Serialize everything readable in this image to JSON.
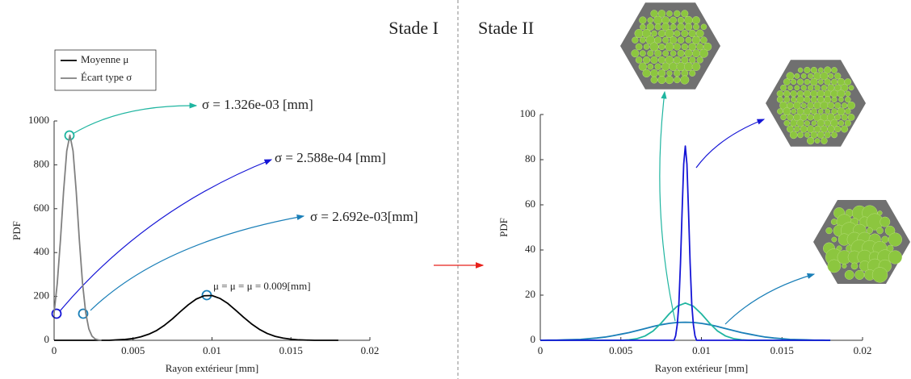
{
  "stages": [
    "Stade I",
    "Stade II"
  ],
  "chart_data": [
    {
      "type": "line",
      "xlabel": "Rayon extérieur [mm]",
      "ylabel": "PDF",
      "xlim": [
        0,
        0.02
      ],
      "xticks": [
        0,
        0.005,
        0.01,
        0.015,
        0.02
      ],
      "ylim": [
        0,
        1000
      ],
      "yticks": [
        0,
        200,
        400,
        600,
        800,
        1000
      ],
      "legend": "upper left",
      "series": [
        {
          "name": "Moyenne μ",
          "color": "#000000",
          "x": [
            0,
            0.0005,
            0.001,
            0.0015,
            0.002,
            0.0025,
            0.003,
            0.0035,
            0.004,
            0.0045,
            0.005,
            0.0055,
            0.006,
            0.0065,
            0.007,
            0.0075,
            0.008,
            0.0085,
            0.009,
            0.0095,
            0.01,
            0.0105,
            0.011,
            0.0115,
            0.012,
            0.0125,
            0.013,
            0.0135,
            0.014,
            0.0145,
            0.015,
            0.0155,
            0.016,
            0.0165,
            0.017,
            0.0175,
            0.018
          ],
          "values": [
            0,
            0,
            0,
            0,
            0,
            0,
            0,
            0,
            2,
            4,
            8,
            16,
            28,
            45,
            69,
            98,
            131,
            162,
            188,
            203,
            204,
            191,
            168,
            137,
            105,
            75,
            50,
            31,
            18,
            10,
            5,
            2,
            1,
            0,
            0,
            0,
            0
          ]
        },
        {
          "name": "Écart type σ",
          "color": "#808080",
          "x": [
            0,
            0.0002,
            0.0004,
            0.0006,
            0.0008,
            0.001,
            0.0012,
            0.0014,
            0.0016,
            0.0018,
            0.002,
            0.0022,
            0.0024,
            0.0026,
            0.0028,
            0.003
          ],
          "values": [
            126,
            260,
            455,
            679,
            863,
            935,
            863,
            679,
            455,
            260,
            126,
            52,
            19,
            6,
            2,
            0
          ]
        }
      ],
      "annotations": [
        {
          "text": "σ = 1.326e-03 [mm]",
          "color": "#1fb5a0"
        },
        {
          "text": "σ = 2.588e-04 [mm]",
          "color": "#1515d6"
        },
        {
          "text": "σ = 2.692e-03[mm]",
          "color": "#1a7fb8"
        },
        {
          "text": "μ = μ = μ = 0.009[mm]",
          "color": "#1515d6"
        }
      ]
    },
    {
      "type": "line",
      "xlabel": "Rayon extérieur [mm]",
      "ylabel": "PDF",
      "xlim": [
        0,
        0.02
      ],
      "xticks": [
        0,
        0.005,
        0.01,
        0.015,
        0.02
      ],
      "ylim": [
        0,
        100
      ],
      "yticks": [
        0,
        20,
        40,
        60,
        80,
        100
      ],
      "series": [
        {
          "color": "#1a7fb8",
          "x": [
            0,
            0.0005,
            0.001,
            0.0015,
            0.002,
            0.0025,
            0.003,
            0.0035,
            0.004,
            0.0045,
            0.005,
            0.0055,
            0.006,
            0.0065,
            0.007,
            0.0075,
            0.008,
            0.0085,
            0.009,
            0.0095,
            0.01,
            0.0105,
            0.011,
            0.0115,
            0.012,
            0.0125,
            0.013,
            0.0135,
            0.014,
            0.0145,
            0.015,
            0.0155,
            0.016,
            0.0165,
            0.017,
            0.0175,
            0.018
          ],
          "values": [
            0,
            0.1,
            0.1,
            0.2,
            0.3,
            0.4,
            0.7,
            1.0,
            1.4,
            2.0,
            2.7,
            3.4,
            4.3,
            5.2,
            6.1,
            6.9,
            7.5,
            7.9,
            8,
            7.9,
            7.5,
            6.9,
            6.1,
            5.2,
            4.3,
            3.4,
            2.7,
            2.0,
            1.4,
            1.0,
            0.7,
            0.4,
            0.3,
            0.2,
            0.1,
            0.1,
            0
          ]
        },
        {
          "color": "#1fb5a0",
          "x": [
            0,
            0.0005,
            0.001,
            0.0015,
            0.002,
            0.0025,
            0.003,
            0.0035,
            0.004,
            0.0045,
            0.005,
            0.0055,
            0.006,
            0.0065,
            0.007,
            0.0075,
            0.008,
            0.0085,
            0.009,
            0.0095,
            0.01,
            0.0105,
            0.011,
            0.0115,
            0.012,
            0.0125,
            0.013,
            0.0135,
            0.014,
            0.0145,
            0.015,
            0.0155,
            0.016,
            0.0165,
            0.017,
            0.0175,
            0.018
          ],
          "values": [
            0,
            0,
            0,
            0,
            0,
            0,
            0,
            0,
            0,
            0,
            0,
            0.2,
            0.7,
            1.9,
            4.1,
            7.6,
            11.7,
            15.1,
            16.5,
            15.1,
            11.7,
            7.6,
            4.1,
            1.9,
            0.7,
            0.2,
            0,
            0,
            0,
            0,
            0,
            0,
            0,
            0,
            0,
            0,
            0
          ]
        },
        {
          "color": "#1515d6",
          "x": [
            0,
            0.0083,
            0.0084,
            0.0085,
            0.0086,
            0.0087,
            0.0088,
            0.0089,
            0.009,
            0.0091,
            0.0092,
            0.0093,
            0.0094,
            0.0095,
            0.0096,
            0.0097,
            0.018
          ],
          "values": [
            0,
            0,
            2,
            7,
            16,
            34,
            57,
            78,
            86,
            78,
            57,
            34,
            16,
            7,
            2,
            0,
            0
          ]
        }
      ]
    }
  ]
}
